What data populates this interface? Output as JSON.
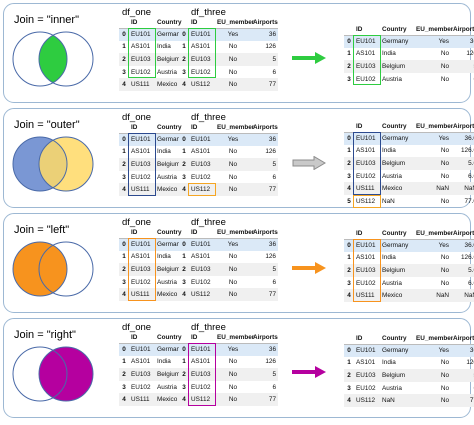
{
  "columns": {
    "one": [
      "",
      "ID",
      "Country"
    ],
    "three": [
      "",
      "ID",
      "EU_member",
      "Airports"
    ],
    "result": [
      "",
      "ID",
      "Country",
      "EU_member",
      "Airports"
    ]
  },
  "colors": {
    "inner": "#2ecc40",
    "outer": "#f5a623",
    "left": "#f7931e",
    "right": "#b5009f",
    "outer_blue": "#7a97d4",
    "outer_yellow": "#ffd966",
    "outer_arrow": "#a9a9a9",
    "panel_border": "#9db8d3"
  },
  "panels": [
    {
      "join_label": "Join = \"inner\"",
      "df_one_title": "df_one",
      "df_three_title": "df_three",
      "df_one": [
        [
          "0",
          "EU101",
          "Germany"
        ],
        [
          "1",
          "AS101",
          "India"
        ],
        [
          "2",
          "EU103",
          "Belgium"
        ],
        [
          "3",
          "EU102",
          "Austria"
        ],
        [
          "4",
          "US111",
          "Mexico"
        ]
      ],
      "df_three": [
        [
          "0",
          "EU101",
          "Yes",
          "36"
        ],
        [
          "1",
          "AS101",
          "No",
          "126"
        ],
        [
          "2",
          "EU103",
          "No",
          "5"
        ],
        [
          "3",
          "EU102",
          "No",
          "6"
        ],
        [
          "4",
          "US112",
          "No",
          "77"
        ]
      ],
      "result": [
        [
          "0",
          "EU101",
          "Germany",
          "Yes",
          "36"
        ],
        [
          "1",
          "AS101",
          "India",
          "No",
          "126"
        ],
        [
          "2",
          "EU103",
          "Belgium",
          "No",
          "5"
        ],
        [
          "3",
          "EU102",
          "Austria",
          "No",
          "6"
        ]
      ]
    },
    {
      "join_label": "Join = \"outer\"",
      "df_one_title": "df_one",
      "df_three_title": "df_three",
      "df_one": [
        [
          "0",
          "EU101",
          "Germany"
        ],
        [
          "1",
          "AS101",
          "India"
        ],
        [
          "2",
          "EU103",
          "Belgium"
        ],
        [
          "3",
          "EU102",
          "Austria"
        ],
        [
          "4",
          "US111",
          "Mexico"
        ]
      ],
      "df_three": [
        [
          "0",
          "EU101",
          "Yes",
          "36"
        ],
        [
          "1",
          "AS101",
          "No",
          "126"
        ],
        [
          "2",
          "EU103",
          "No",
          "5"
        ],
        [
          "3",
          "EU102",
          "No",
          "6"
        ],
        [
          "4",
          "US112",
          "No",
          "77"
        ]
      ],
      "result": [
        [
          "0",
          "EU101",
          "Germany",
          "Yes",
          "36.0"
        ],
        [
          "1",
          "AS101",
          "India",
          "No",
          "126.0"
        ],
        [
          "2",
          "EU103",
          "Belgium",
          "No",
          "5.0"
        ],
        [
          "3",
          "EU102",
          "Austria",
          "No",
          "6.0"
        ],
        [
          "4",
          "US111",
          "Mexico",
          "NaN",
          "NaN"
        ],
        [
          "5",
          "US112",
          "NaN",
          "No",
          "77.0"
        ]
      ]
    },
    {
      "join_label": "Join = \"left\"",
      "df_one_title": "df_one",
      "df_three_title": "df_three",
      "df_one": [
        [
          "0",
          "EU101",
          "Germany"
        ],
        [
          "1",
          "AS101",
          "India"
        ],
        [
          "2",
          "EU103",
          "Belgium"
        ],
        [
          "3",
          "EU102",
          "Austria"
        ],
        [
          "4",
          "US111",
          "Mexico"
        ]
      ],
      "df_three": [
        [
          "0",
          "EU101",
          "Yes",
          "36"
        ],
        [
          "1",
          "AS101",
          "No",
          "126"
        ],
        [
          "2",
          "EU103",
          "No",
          "5"
        ],
        [
          "3",
          "EU102",
          "No",
          "6"
        ],
        [
          "4",
          "US112",
          "No",
          "77"
        ]
      ],
      "result": [
        [
          "0",
          "EU101",
          "Germany",
          "Yes",
          "36.0"
        ],
        [
          "1",
          "AS101",
          "India",
          "No",
          "126.0"
        ],
        [
          "2",
          "EU103",
          "Belgium",
          "No",
          "5.0"
        ],
        [
          "3",
          "EU102",
          "Austria",
          "No",
          "6.0"
        ],
        [
          "4",
          "US111",
          "Mexico",
          "NaN",
          "NaN"
        ]
      ]
    },
    {
      "join_label": "Join = \"right\"",
      "df_one_title": "df_one",
      "df_three_title": "df_three",
      "df_one": [
        [
          "0",
          "EU101",
          "Germany"
        ],
        [
          "1",
          "AS101",
          "India"
        ],
        [
          "2",
          "EU103",
          "Belgium"
        ],
        [
          "3",
          "EU102",
          "Austria"
        ],
        [
          "4",
          "US111",
          "Mexico"
        ]
      ],
      "df_three": [
        [
          "0",
          "EU101",
          "Yes",
          "36"
        ],
        [
          "1",
          "AS101",
          "No",
          "126"
        ],
        [
          "2",
          "EU103",
          "No",
          "5"
        ],
        [
          "3",
          "EU102",
          "No",
          "6"
        ],
        [
          "4",
          "US112",
          "No",
          "77"
        ]
      ],
      "result": [
        [
          "0",
          "EU101",
          "Germany",
          "Yes",
          "36"
        ],
        [
          "1",
          "AS101",
          "India",
          "No",
          "126"
        ],
        [
          "2",
          "EU103",
          "Belgium",
          "No",
          "5"
        ],
        [
          "3",
          "EU102",
          "Austria",
          "No",
          "6"
        ],
        [
          "4",
          "US112",
          "NaN",
          "No",
          "77"
        ]
      ]
    }
  ]
}
